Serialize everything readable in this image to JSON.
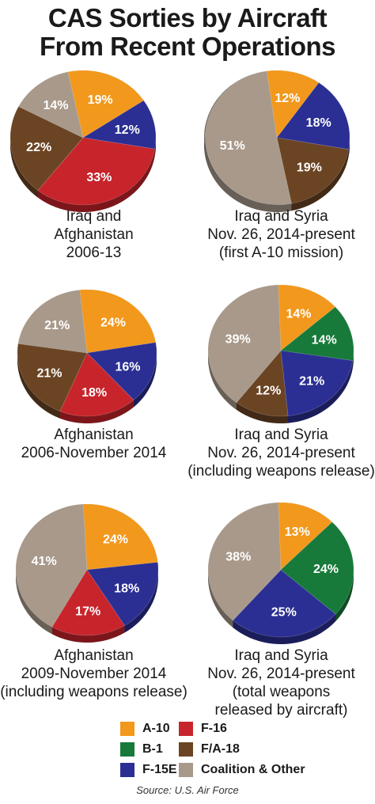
{
  "title_line1": "CAS Sorties by Aircraft",
  "title_line2": "From Recent Operations",
  "source": "Source: U.S. Air Force",
  "colors": {
    "A-10": "#f2981c",
    "F-16": "#c8242b",
    "B-1": "#177a3a",
    "F/A-18": "#6b4423",
    "F-15E": "#2b2f93",
    "Coalition & Other": "#a8998a"
  },
  "legend": [
    {
      "key": "A-10",
      "label": "A-10"
    },
    {
      "key": "F-16",
      "label": "F-16"
    },
    {
      "key": "B-1",
      "label": "B-1"
    },
    {
      "key": "F/A-18",
      "label": "F/A-18"
    },
    {
      "key": "F-15E",
      "label": "F-15E"
    },
    {
      "key": "Coalition & Other",
      "label": "Coalition & Other"
    }
  ],
  "chart_data": [
    {
      "type": "pie",
      "caption": [
        "Iraq and",
        "Afghanistan",
        "2006-13"
      ],
      "slices": [
        {
          "name": "A-10",
          "value": 19,
          "label": "19%"
        },
        {
          "name": "F-15E",
          "value": 12,
          "label": "12%"
        },
        {
          "name": "F-16",
          "value": 33,
          "label": "33%"
        },
        {
          "name": "F/A-18",
          "value": 22,
          "label": "22%"
        },
        {
          "name": "Coalition & Other",
          "value": 14,
          "label": "14%"
        }
      ]
    },
    {
      "type": "pie",
      "caption": [
        "Iraq and Syria",
        "Nov. 26, 2014-present",
        "(first A-10 mission)"
      ],
      "slices": [
        {
          "name": "A-10",
          "value": 12,
          "label": "12%"
        },
        {
          "name": "F-15E",
          "value": 18,
          "label": "18%"
        },
        {
          "name": "F/A-18",
          "value": 19,
          "label": "19%"
        },
        {
          "name": "Coalition & Other",
          "value": 51,
          "label": "51%"
        }
      ]
    },
    {
      "type": "pie",
      "caption": [
        "Afghanistan",
        "2006-November 2014"
      ],
      "slices": [
        {
          "name": "A-10",
          "value": 24,
          "label": "24%"
        },
        {
          "name": "F-15E",
          "value": 16,
          "label": "16%"
        },
        {
          "name": "F-16",
          "value": 18,
          "label": "18%"
        },
        {
          "name": "F/A-18",
          "value": 21,
          "label": "21%"
        },
        {
          "name": "Coalition & Other",
          "value": 21,
          "label": "21%"
        }
      ]
    },
    {
      "type": "pie",
      "caption": [
        "Iraq and Syria",
        "Nov. 26, 2014-present",
        "(including weapons release)"
      ],
      "slices": [
        {
          "name": "A-10",
          "value": 14,
          "label": "14%"
        },
        {
          "name": "B-1",
          "value": 14,
          "label": "14%"
        },
        {
          "name": "F-15E",
          "value": 21,
          "label": "21%"
        },
        {
          "name": "F/A-18",
          "value": 12,
          "label": "12%"
        },
        {
          "name": "Coalition & Other",
          "value": 39,
          "label": "39%"
        }
      ]
    },
    {
      "type": "pie",
      "caption": [
        "Afghanistan",
        "2009-November 2014",
        "(including weapons release)"
      ],
      "slices": [
        {
          "name": "A-10",
          "value": 24,
          "label": "24%"
        },
        {
          "name": "F-15E",
          "value": 18,
          "label": "18%"
        },
        {
          "name": "F-16",
          "value": 17,
          "label": "17%"
        },
        {
          "name": "Coalition & Other",
          "value": 41,
          "label": "41%"
        }
      ]
    },
    {
      "type": "pie",
      "caption": [
        "Iraq and Syria",
        "Nov. 26, 2014-present",
        "(total weapons",
        "released by aircraft)"
      ],
      "slices": [
        {
          "name": "A-10",
          "value": 13,
          "label": "13%"
        },
        {
          "name": "B-1",
          "value": 24,
          "label": "24%"
        },
        {
          "name": "F-15E",
          "value": 25,
          "label": "25%"
        },
        {
          "name": "Coalition & Other",
          "value": 38,
          "label": "38%"
        }
      ]
    }
  ]
}
